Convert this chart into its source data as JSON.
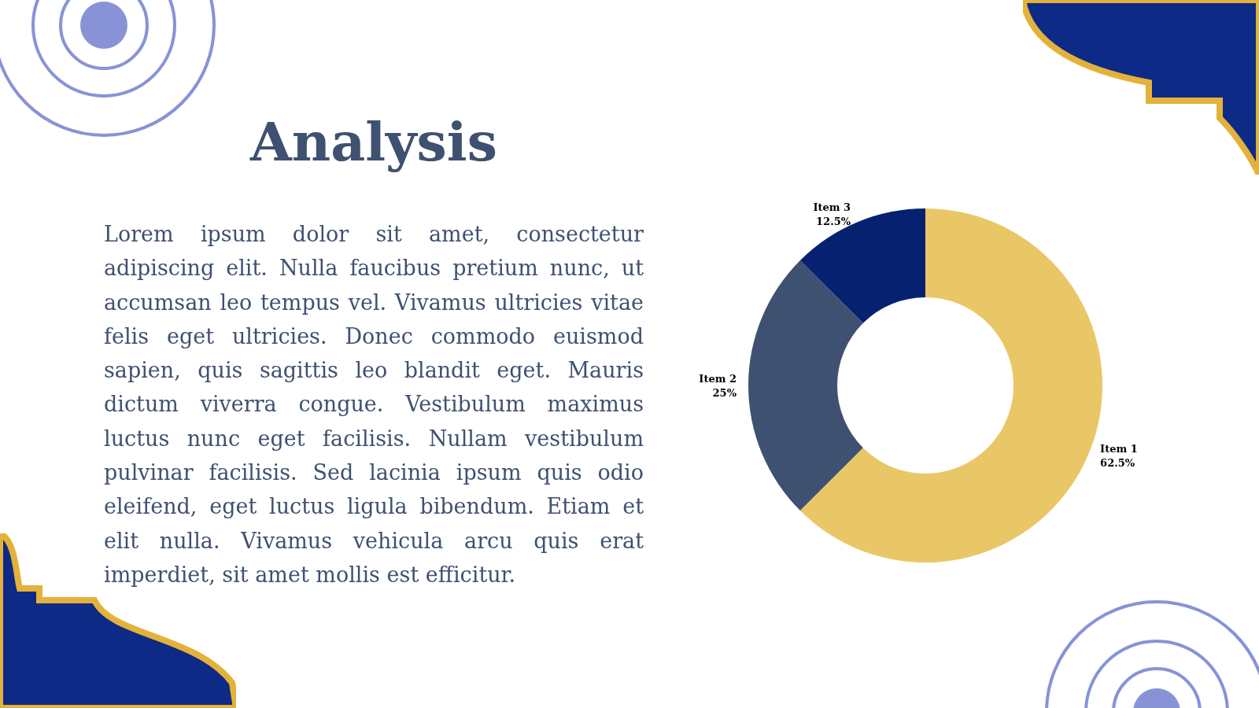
{
  "chart_data": {
    "type": "donut",
    "title": "Analysis",
    "annotations": [
      "Lorem ipsum dolor sit amet, consectetur adipiscing elit. Nulla faucibus pretium nunc, ut accumsan leo tempus vel. Vivamus ultricies vitae felis eget ultricies. Donec commodo euismod sapien, quis sagittis leo blandit eget. Mauris dictum viverra congue. Vestibulum maximus luctus nunc eget facilisis. Nullam vestibulum pulvinar facilisis. Sed lacinia ipsum quis odio eleifend, eget luctus ligula bibendum. Etiam et elit nulla. Vivamus vehicula arcu quis erat imperdiet, sit amet mollis est efficitur."
    ],
    "categories": [
      "Item 1",
      "Item 2",
      "Item 3"
    ],
    "values": [
      62.5,
      25,
      12.5
    ],
    "value_labels": [
      "62.5%",
      "25%",
      "12.5%"
    ],
    "colors": [
      "#e9c766",
      "#3f5170",
      "#062170"
    ],
    "legend": false
  }
}
